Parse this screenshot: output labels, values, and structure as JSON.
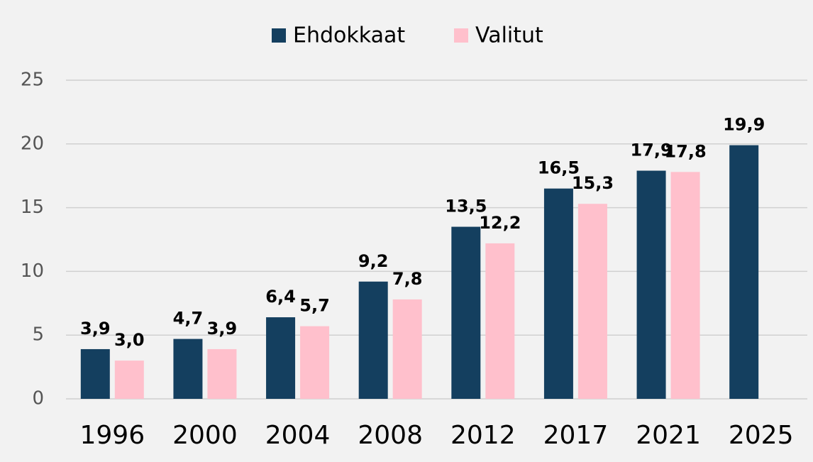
{
  "chart_data": {
    "type": "bar",
    "categories": [
      "1996",
      "2000",
      "2004",
      "2008",
      "2012",
      "2017",
      "2021",
      "2025"
    ],
    "series": [
      {
        "name": "Ehdokkaat",
        "color": "#143f5f",
        "values": [
          3.9,
          4.7,
          6.4,
          9.2,
          13.5,
          16.5,
          17.9,
          19.9
        ],
        "value_labels": [
          "3,9",
          "4,7",
          "6,4",
          "9,2",
          "13,5",
          "16,5",
          "17,9",
          "19,9"
        ]
      },
      {
        "name": "Valitut",
        "color": "#ffc0cc",
        "values": [
          3.0,
          3.9,
          5.7,
          7.8,
          12.2,
          15.3,
          17.8,
          null
        ],
        "value_labels": [
          "3,0",
          "3,9",
          "5,7",
          "7,8",
          "12,2",
          "15,3",
          "17,8",
          null
        ]
      }
    ],
    "ylim": [
      0,
      25
    ],
    "yticks": [
      0,
      5,
      10,
      15,
      20,
      25
    ],
    "grid": true,
    "legend": "top"
  }
}
